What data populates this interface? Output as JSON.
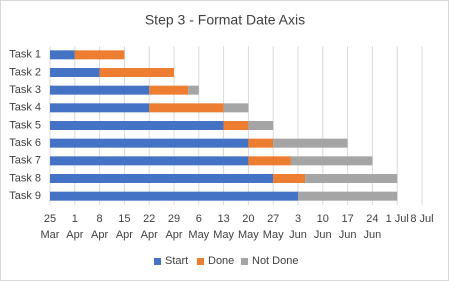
{
  "chart_data": {
    "type": "gantt",
    "title": "Step 3 - Format Date Axis",
    "categories": [
      "Task 1",
      "Task 2",
      "Task 3",
      "Task 4",
      "Task 5",
      "Task 6",
      "Task 7",
      "Task 8",
      "Task 9"
    ],
    "series": [
      {
        "name": "Start",
        "color": "#4472c4",
        "values": [
          "1 Apr",
          "8 Apr",
          "22 Apr",
          "22 Apr",
          "13 May",
          "20 May",
          "20 May",
          "27 May",
          "3 Jun"
        ]
      },
      {
        "name": "Done",
        "color": "#ed7d31",
        "values": [
          14,
          21,
          11,
          21,
          7,
          7,
          12,
          9,
          0
        ]
      },
      {
        "name": "Not Done",
        "color": "#a5a5a5",
        "values": [
          0,
          0,
          3,
          7,
          7,
          21,
          23,
          26,
          28
        ]
      }
    ],
    "xlim": [
      "25 Mar",
      "8 Jul"
    ],
    "xticks": [
      "25 Mar",
      "1 Apr",
      "8 Apr",
      "15 Apr",
      "22 Apr",
      "29 Apr",
      "6 May",
      "13 May",
      "20 May",
      "27 May",
      "3 Jun",
      "10 Jun",
      "17 Jun",
      "24 Jun",
      "1 Jul",
      "8 Jul"
    ],
    "grid": true,
    "legend": "bottom"
  }
}
